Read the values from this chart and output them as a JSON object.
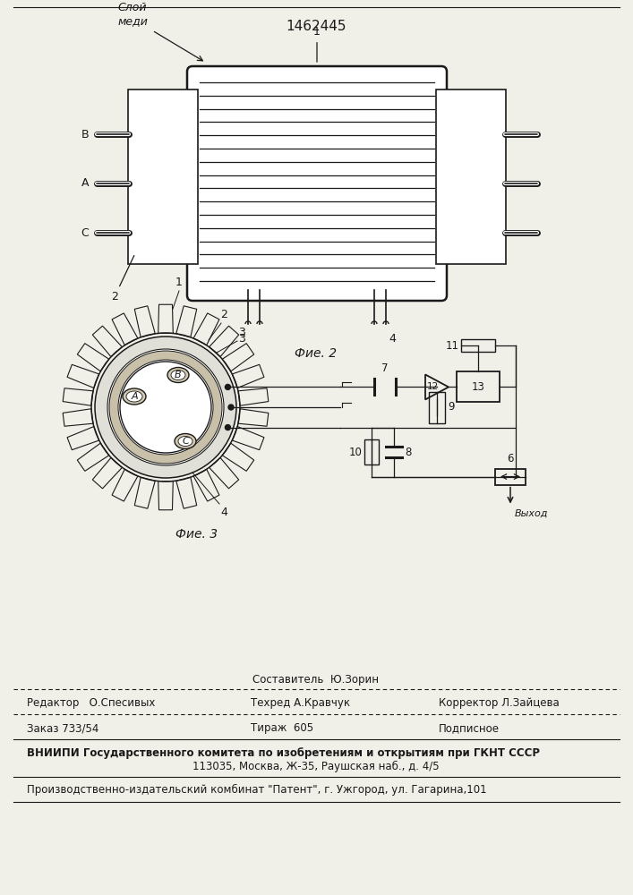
{
  "patent_number": "1462445",
  "fig2_caption": "Фие. 2",
  "fig3_caption": "Фие. 3",
  "bg": "#f0efe8",
  "lc": "#1a1a1a",
  "label_sloy_medi": "Слой\nмеди"
}
